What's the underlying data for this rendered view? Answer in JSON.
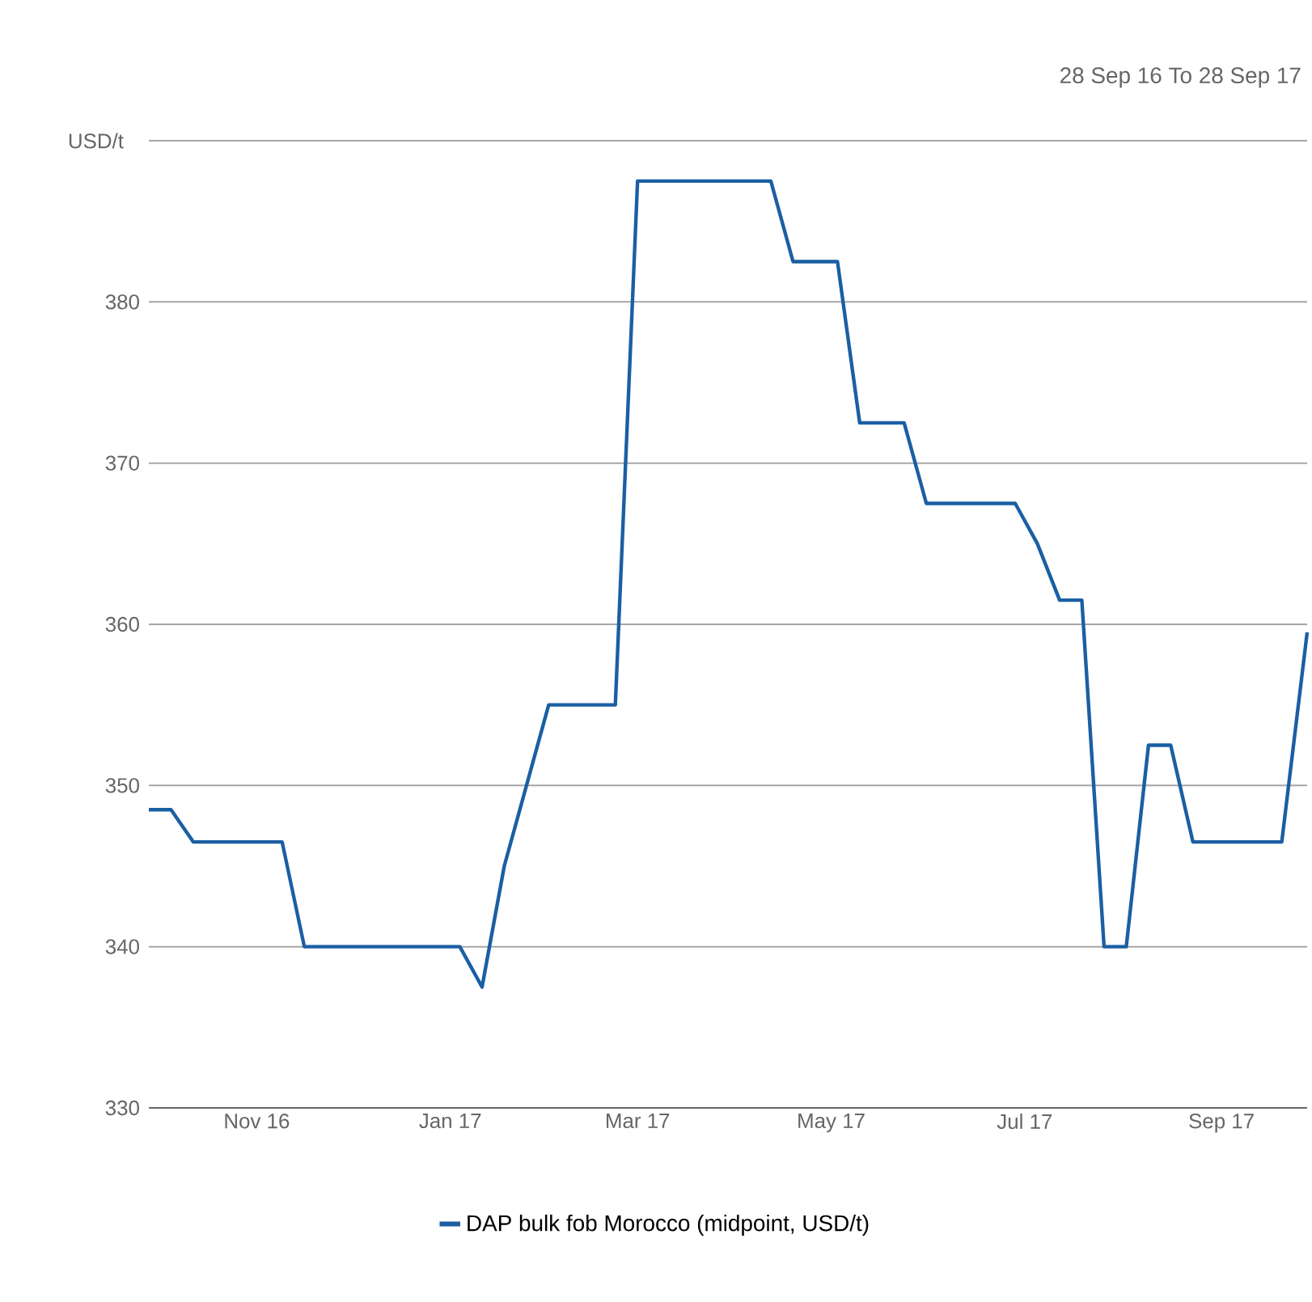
{
  "chart_data": {
    "type": "line",
    "annotations": [
      "28 Sep 16 To 28 Sep 17"
    ],
    "ylabel": "USD/t",
    "x": [
      "2016-09-28",
      "2016-10-05",
      "2016-10-12",
      "2016-11-09",
      "2016-11-16",
      "2017-01-04",
      "2017-01-11",
      "2017-01-18",
      "2017-02-01",
      "2017-02-22",
      "2017-03-01",
      "2017-04-12",
      "2017-04-19",
      "2017-05-03",
      "2017-05-10",
      "2017-05-24",
      "2017-05-31",
      "2017-06-28",
      "2017-07-05",
      "2017-07-12",
      "2017-07-19",
      "2017-07-26",
      "2017-08-02",
      "2017-08-09",
      "2017-08-16",
      "2017-08-23",
      "2017-09-20",
      "2017-09-28"
    ],
    "series": [
      {
        "name": "DAP bulk fob Morocco (midpoint, USD/t)",
        "color": "#1a5fa3",
        "values": [
          348.5,
          348.5,
          346.5,
          346.5,
          340,
          340,
          337.5,
          345,
          355,
          355,
          387.5,
          387.5,
          382.5,
          382.5,
          372.5,
          372.5,
          367.5,
          367.5,
          365,
          361.5,
          361.5,
          340,
          340,
          352.5,
          352.5,
          346.5,
          346.5,
          359.5
        ]
      }
    ],
    "xlim": [
      "2016-09-28",
      "2017-09-28"
    ],
    "xticks": [
      {
        "value": "2016-11-01",
        "label": "Nov 16"
      },
      {
        "value": "2017-01-01",
        "label": "Jan 17"
      },
      {
        "value": "2017-03-01",
        "label": "Mar 17"
      },
      {
        "value": "2017-05-01",
        "label": "May 17"
      },
      {
        "value": "2017-07-01",
        "label": "Jul 17"
      },
      {
        "value": "2017-09-01",
        "label": "Sep 17"
      }
    ],
    "ylim": [
      330,
      390
    ],
    "yticks": [
      330,
      340,
      350,
      360,
      370,
      380,
      {
        "value": 390,
        "label": null
      }
    ],
    "grid": "y",
    "legend": "bottom",
    "marker": "none",
    "line_style": "solid"
  }
}
